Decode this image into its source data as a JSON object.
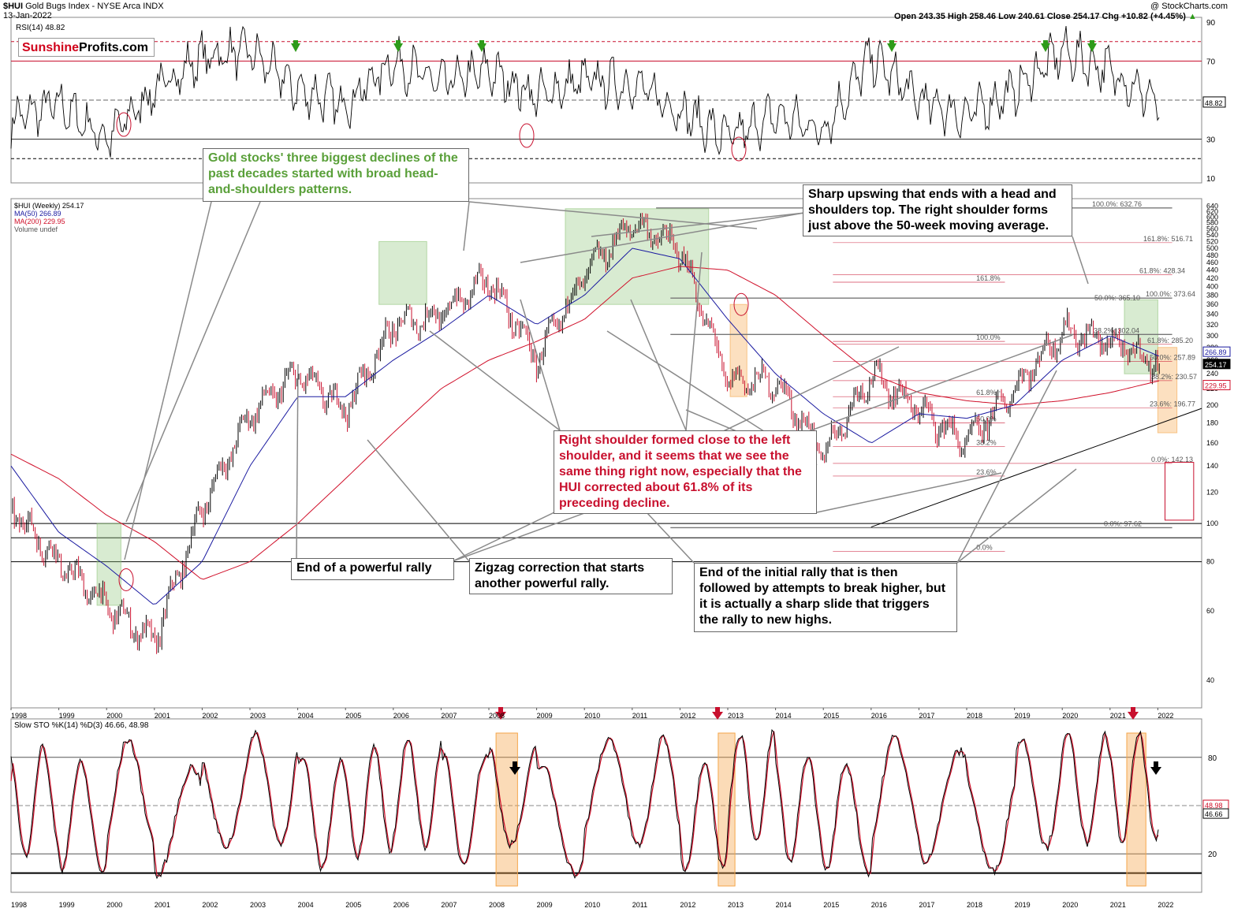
{
  "header": {
    "ticker_title": "$HUI",
    "title_rest": "Gold Bugs Index - NYSE Arca INDX",
    "date": "13-Jan-2022",
    "copyright": "@ StockCharts.com",
    "ohlc": "Open 243.35  High 258.46  Low 240.61  Close 254.17  Chg +10.82 (+4.45%)",
    "chg_arrow": "▲"
  },
  "logo": {
    "part1": "Sunshine",
    "part2": "Profits.com"
  },
  "colors": {
    "price": "#000000",
    "ma50": "#1a1aa0",
    "ma200": "#d0102a",
    "green_box": "#8fc57a",
    "orange_box": "#f5a64a",
    "annot_green": "#5aa03a",
    "annot_red": "#c8102e",
    "signal_green": "#2e9b1a",
    "signal_red": "#c8102e"
  },
  "rsi_panel": {
    "label": "RSI(14) 48.82",
    "value_tag": "48.82",
    "ticks": [
      "90",
      "70",
      "30",
      "10"
    ]
  },
  "price_panel": {
    "legend": [
      "$HUI (Weekly) 254.17",
      "MA(50) 266.89",
      "MA(200) 229.95",
      "Volume undef"
    ],
    "tags": [
      "266.89",
      "254.17",
      "229.95"
    ],
    "ticks": [
      "640",
      "620",
      "600",
      "580",
      "560",
      "540",
      "520",
      "500",
      "480",
      "460",
      "440",
      "420",
      "400",
      "380",
      "360",
      "340",
      "320",
      "300",
      "280",
      "260",
      "240",
      "220",
      "200",
      "180",
      "160",
      "140",
      "120",
      "100",
      "80",
      "60",
      "40"
    ],
    "fib_left": [
      "161.8%",
      "100.0%",
      "61.8%",
      "50.0%",
      "38.2%",
      "23.6%",
      "0.0%"
    ],
    "fib_right": [
      "100.0%: 632.76",
      "161.8%: 516.71",
      "61.8%: 428.34",
      "50.0%: 365.10",
      "100.0%: 373.64",
      "38.2%: 302.04",
      "61.8%: 285.20",
      "50.0%: 257.89",
      "38.2%: 230.57",
      "23.6%: 196.77",
      "0.0%: 142.13",
      "0.0%: 97.62"
    ]
  },
  "sto_panel": {
    "label": "Slow STO %K(14) %D(3) 46.66, 48.98",
    "ticks": [
      "80",
      "20"
    ],
    "tags": [
      "48.98",
      "46.66"
    ]
  },
  "x_axis": [
    "1998",
    "1999",
    "2000",
    "2001",
    "2002",
    "2003",
    "2004",
    "2005",
    "2006",
    "2007",
    "2008",
    "2009",
    "2010",
    "2011",
    "2012",
    "2013",
    "2014",
    "2015",
    "2016",
    "2017",
    "2018",
    "2019",
    "2020",
    "2021",
    "2022"
  ],
  "annotations": {
    "gold_stocks": "Gold stocks' three biggest declines of the past decades started with broad head-and-shoulders patterns.",
    "sharp_upswing": "Sharp upswing that ends with a head and shoulders top. The right shoulder forms just above the 50-week moving average.",
    "right_shoulder": "Right shoulder formed close to the left shoulder, and it seems that we see the same thing right now, especially that the HUI corrected about 61.8% of its preceding decline.",
    "end_rally": "End of a powerful rally",
    "zigzag": "Zigzag correction that starts another powerful rally.",
    "initial_rally": "End of the initial rally that is then followed by attempts to break higher, but it is actually a sharp slide that triggers the rally to new highs."
  },
  "chart_data": [
    {
      "type": "line",
      "title": "RSI(14) 48.82",
      "x": [
        1998,
        1999,
        2000,
        2001,
        2002,
        2003,
        2004,
        2005,
        2006,
        2007,
        2008,
        2009,
        2010,
        2011,
        2012,
        2013,
        2014,
        2015,
        2016,
        2017,
        2018,
        2019,
        2020,
        2021,
        2022
      ],
      "series": [
        {
          "name": "RSI(14)",
          "values": [
            40,
            48,
            30,
            55,
            72,
            75,
            55,
            48,
            70,
            58,
            65,
            52,
            60,
            58,
            45,
            30,
            42,
            35,
            72,
            50,
            42,
            55,
            75,
            65,
            48.82
          ]
        }
      ],
      "ylim": [
        0,
        100
      ],
      "reference_lines": [
        80,
        70,
        50,
        30,
        20
      ]
    },
    {
      "type": "line",
      "title": "$HUI (Weekly) 254.17",
      "x": [
        1998,
        1999,
        2000,
        2001,
        2002,
        2003,
        2004,
        2005,
        2006,
        2007,
        2008,
        2009,
        2010,
        2011,
        2012,
        2013,
        2014,
        2015,
        2016,
        2017,
        2018,
        2019,
        2020,
        2021,
        2022
      ],
      "series": [
        {
          "name": "$HUI (Weekly)",
          "values": [
            110,
            80,
            62,
            50,
            110,
            190,
            240,
            195,
            320,
            340,
            420,
            260,
            430,
            580,
            500,
            230,
            230,
            150,
            240,
            195,
            160,
            220,
            310,
            290,
            254.17
          ]
        },
        {
          "name": "MA(50)",
          "values": [
            140,
            95,
            78,
            62,
            80,
            140,
            210,
            210,
            260,
            310,
            380,
            320,
            380,
            500,
            470,
            330,
            240,
            190,
            160,
            190,
            185,
            200,
            260,
            300,
            266.89
          ]
        },
        {
          "name": "MA(200)",
          "values": [
            150,
            130,
            105,
            90,
            72,
            80,
            100,
            130,
            170,
            220,
            260,
            290,
            330,
            420,
            450,
            440,
            380,
            300,
            240,
            215,
            205,
            200,
            205,
            215,
            229.95
          ]
        }
      ],
      "y_scale": "log",
      "ylim": [
        35,
        650
      ]
    },
    {
      "type": "line",
      "title": "Slow STO %K(14) %D(3) 46.66, 48.98",
      "x": [
        1998,
        1999,
        2000,
        2001,
        2002,
        2003,
        2004,
        2005,
        2006,
        2007,
        2008,
        2009,
        2010,
        2011,
        2012,
        2013,
        2014,
        2015,
        2016,
        2017,
        2018,
        2019,
        2020,
        2021,
        2022
      ],
      "series": [
        {
          "name": "%K(14)",
          "values": [
            60,
            20,
            80,
            10,
            85,
            90,
            30,
            60,
            85,
            40,
            90,
            15,
            80,
            85,
            30,
            95,
            40,
            20,
            85,
            50,
            20,
            80,
            90,
            95,
            46.66
          ]
        },
        {
          "name": "%D(3)",
          "values": [
            58,
            22,
            78,
            12,
            83,
            88,
            32,
            58,
            83,
            42,
            88,
            17,
            78,
            83,
            32,
            93,
            42,
            22,
            83,
            52,
            22,
            78,
            88,
            93,
            48.98
          ]
        }
      ],
      "ylim": [
        0,
        100
      ],
      "reference_lines": [
        80,
        50,
        20
      ]
    }
  ]
}
